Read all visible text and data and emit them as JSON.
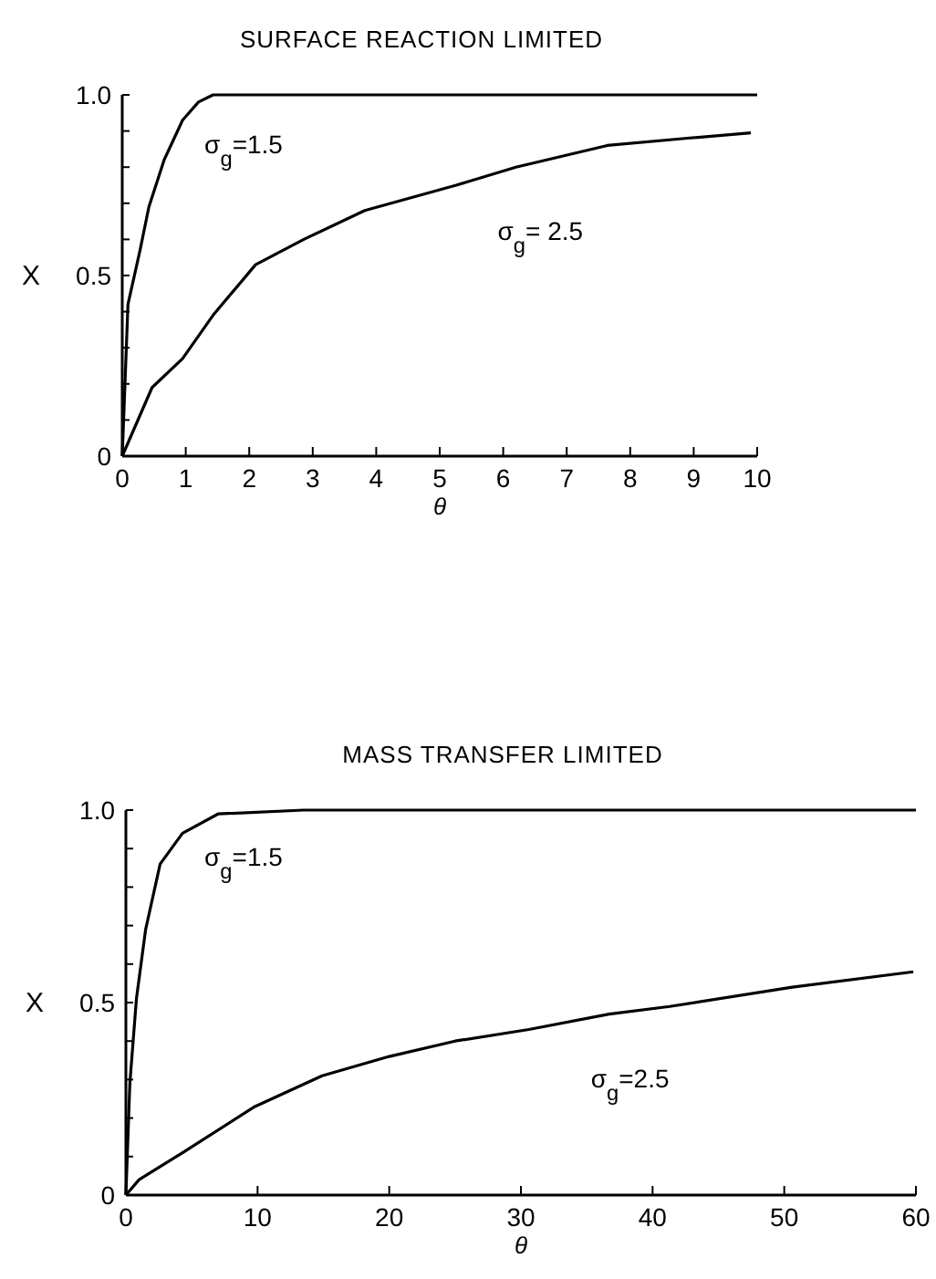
{
  "chart_data": [
    {
      "type": "line",
      "title": "SURFACE REACTION LIMITED",
      "xlabel": "θ",
      "ylabel": "X",
      "xlim": [
        0,
        10
      ],
      "xticks": [
        0,
        1,
        2,
        3,
        4,
        5,
        6,
        7,
        8,
        9,
        10
      ],
      "ylim": [
        0,
        1
      ],
      "yticks": [
        0,
        {
          "value": 0.1,
          "label": null
        },
        {
          "value": 0.2,
          "label": null
        },
        {
          "value": 0.3,
          "label": null
        },
        {
          "value": 0.4,
          "label": null
        },
        {
          "value": 0.5,
          "label": "0.5"
        },
        {
          "value": 0.6,
          "label": null
        },
        {
          "value": 0.7,
          "label": null
        },
        {
          "value": 0.8,
          "label": null
        },
        {
          "value": 0.9,
          "label": null
        },
        {
          "value": 1,
          "label": "1.0"
        }
      ],
      "grid": false,
      "legend": false,
      "marker": "none",
      "line_style": "solid",
      "series": [
        {
          "name": "σ$_{g}$=1.5",
          "color": "#000000",
          "x": [
            0,
            0.09,
            0.28,
            0.42,
            0.66,
            0.95,
            1.2,
            1.43,
            3,
            5,
            7,
            10
          ],
          "values": [
            0,
            0.42,
            0.57,
            0.69,
            0.82,
            0.93,
            0.98,
            1.0,
            1.0,
            1.0,
            1.0,
            1.0
          ]
        },
        {
          "name": "σ$_{g}$= 2.5",
          "color": "#000000",
          "x": [
            0,
            0.47,
            0.95,
            1.43,
            2.1,
            2.86,
            3.82,
            5.26,
            6.2,
            7.64,
            8.9,
            9.9
          ],
          "values": [
            0,
            0.19,
            0.27,
            0.39,
            0.53,
            0.6,
            0.68,
            0.75,
            0.8,
            0.86,
            0.88,
            0.895
          ]
        }
      ]
    },
    {
      "type": "line",
      "title": "MASS TRANSFER LIMITED",
      "xlabel": "θ",
      "ylabel": "X",
      "xlim": [
        0,
        60
      ],
      "xticks": [
        0,
        10,
        20,
        30,
        40,
        50,
        60
      ],
      "ylim": [
        0,
        1
      ],
      "yticks": [
        0,
        {
          "value": 0.1,
          "label": null
        },
        {
          "value": 0.2,
          "label": null
        },
        {
          "value": 0.3,
          "label": null
        },
        {
          "value": 0.4,
          "label": null
        },
        {
          "value": 0.5,
          "label": "0.5"
        },
        {
          "value": 0.6,
          "label": null
        },
        {
          "value": 0.7,
          "label": null
        },
        {
          "value": 0.8,
          "label": null
        },
        {
          "value": 0.9,
          "label": null
        },
        {
          "value": 1,
          "label": "1.0"
        }
      ],
      "grid": false,
      "legend": false,
      "marker": "none",
      "line_style": "solid",
      "series": [
        {
          "name": "σ$_{g}$=1.5",
          "color": "#000000",
          "x": [
            0,
            0.3,
            0.8,
            1.5,
            2.6,
            4.3,
            7,
            13.5,
            36.7,
            60
          ],
          "values": [
            0,
            0.29,
            0.51,
            0.69,
            0.86,
            0.94,
            0.99,
            1.0,
            1.0,
            1.0
          ]
        },
        {
          "name": "σ$_{g}$=2.5",
          "color": "#000000",
          "x": [
            0,
            1,
            4.3,
            9.8,
            14.9,
            20,
            25,
            30.6,
            36.7,
            41.3,
            50.6,
            59.8
          ],
          "values": [
            0,
            0.04,
            0.11,
            0.23,
            0.31,
            0.36,
            0.4,
            0.43,
            0.47,
            0.49,
            0.54,
            0.58
          ]
        }
      ]
    }
  ]
}
